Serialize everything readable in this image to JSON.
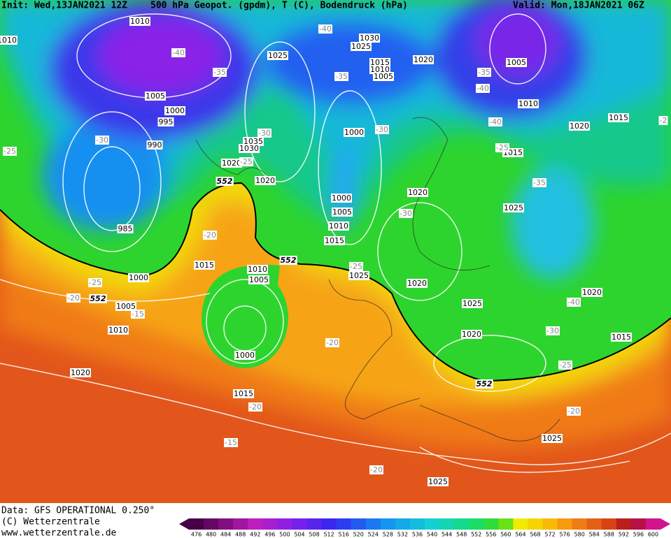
{
  "header": {
    "init": "Init: Wed,13JAN2021 12Z",
    "title": "500 hPa Geopot. (gpdm), T (C), Bodendruck (hPa)",
    "valid": "Valid: Mon,18JAN2021 06Z"
  },
  "map": {
    "isobar_labels": [
      "1010",
      "1030",
      "1025",
      "1020",
      "1005",
      "1025",
      "1015",
      "1010",
      "1005",
      "1005",
      "1000",
      "995",
      "990",
      "1035",
      "1030",
      "1020",
      "1020",
      "1000",
      "1010",
      "1020",
      "1015",
      "1015",
      "1020",
      "1025",
      "1000",
      "1005",
      "1010",
      "1015",
      "985",
      "1015",
      "1010",
      "1005",
      "1000",
      "1025",
      "1020",
      "1025",
      "1020",
      "1005",
      "1010",
      "1020",
      "1015",
      "1000",
      "1020",
      "1015",
      "1025",
      "1025",
      "1010"
    ],
    "temperature_labels": [
      "-40",
      "-40",
      "-35",
      "-35",
      "-35",
      "-40",
      "-40",
      "-30",
      "-30",
      "-30",
      "-25",
      "-25",
      "-25",
      "-35",
      "-30",
      "-20",
      "-25",
      "-25",
      "-20",
      "-15",
      "-40",
      "-30",
      "-25",
      "-20",
      "-20",
      "-20",
      "-15",
      "-20",
      "-2"
    ],
    "geopotential_labels": [
      "552",
      "552",
      "552",
      "552"
    ]
  },
  "footer": {
    "data": "Data: GFS OPERATIONAL 0.250°",
    "copyright": "(C) Wetterzentrale",
    "url": "www.wetterzentrale.de"
  },
  "legend": {
    "values": [
      476,
      480,
      484,
      488,
      492,
      496,
      500,
      504,
      508,
      512,
      516,
      520,
      524,
      528,
      532,
      536,
      540,
      544,
      548,
      552,
      556,
      560,
      564,
      568,
      572,
      576,
      580,
      584,
      588,
      592,
      596,
      600
    ]
  }
}
